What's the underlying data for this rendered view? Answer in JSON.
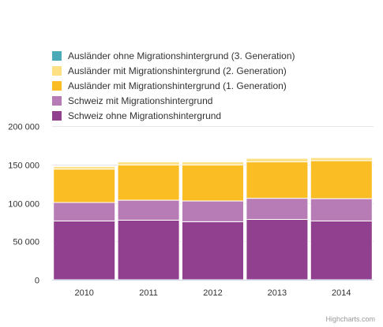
{
  "chart_data": {
    "type": "bar",
    "stacked": true,
    "categories": [
      "2010",
      "2011",
      "2012",
      "2013",
      "2014"
    ],
    "series": [
      {
        "name": "Schweiz ohne Migrationshintergrund",
        "color": "#913f8f",
        "values": [
          76500,
          77500,
          75500,
          78500,
          76500
        ]
      },
      {
        "name": "Schweiz mit Migrationshintergrund",
        "color": "#b77bb5",
        "values": [
          24000,
          26000,
          27000,
          27500,
          29000
        ]
      },
      {
        "name": "Ausländer mit Migrationshintergrund (1. Generation)",
        "color": "#fbbd24",
        "values": [
          43500,
          46000,
          47000,
          47500,
          49500
        ]
      },
      {
        "name": "Ausländer mit Migrationshintergrund (2. Generation)",
        "color": "#fde084",
        "values": [
          3500,
          4000,
          4000,
          4500,
          4000
        ]
      },
      {
        "name": "Ausländer ohne Migrationshintergrund (3. Generation)",
        "color": "#4aaab8",
        "values": [
          200,
          200,
          200,
          200,
          200
        ]
      }
    ],
    "legend_order": [
      4,
      3,
      2,
      1,
      0
    ],
    "y_ticks": [
      "0",
      "50 000",
      "100 000",
      "150 000",
      "200 000"
    ],
    "y_tick_values": [
      0,
      50000,
      100000,
      150000,
      200000
    ],
    "ylim": [
      0,
      200000
    ],
    "grid": true,
    "legend_position": "top-left"
  },
  "credits": "Highcharts.com"
}
